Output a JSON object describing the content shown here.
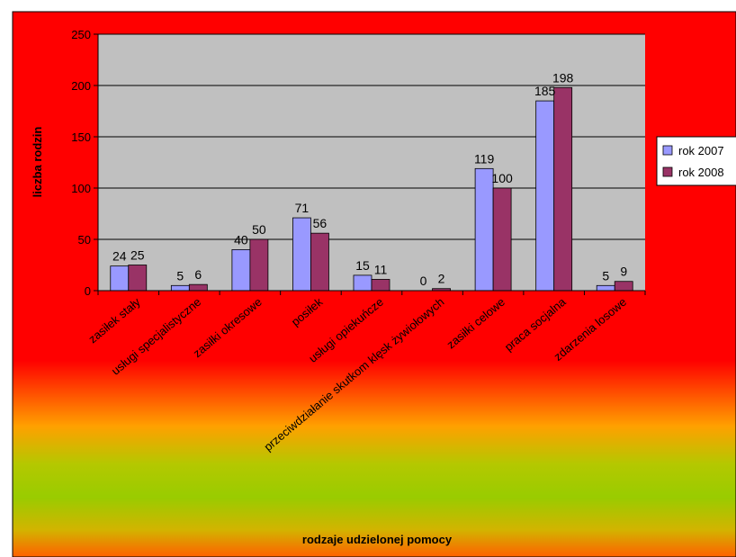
{
  "chart_data": {
    "type": "bar",
    "title": "",
    "xlabel": "rodzaje udzielonej pomocy",
    "ylabel": "liczba rodzin",
    "ylim": [
      0,
      250
    ],
    "yticks": [
      0,
      50,
      100,
      150,
      200,
      250
    ],
    "grid": true,
    "legend_position": "right",
    "categories": [
      "zasiłek stały",
      "usługi specjalistyczne",
      "zasiłki okresowe",
      "posiłek",
      "usługi opiekuńcze",
      "przeciwdziałanie skutkom klęsk żywiołowych",
      "zasiłki celowe",
      "praca socjalna",
      "zdarzenia losowe"
    ],
    "series": [
      {
        "name": "rok 2007",
        "color": "#9999ff",
        "values": [
          24,
          5,
          40,
          71,
          15,
          0,
          119,
          185,
          5
        ]
      },
      {
        "name": "rok 2008",
        "color": "#993366",
        "values": [
          25,
          6,
          50,
          56,
          11,
          2,
          100,
          198,
          9
        ]
      }
    ]
  },
  "colors": {
    "background_top": "#ff0000",
    "background_mid": "#99cc00",
    "plot_area": "#c0c0c0",
    "gridline": "#000000"
  }
}
